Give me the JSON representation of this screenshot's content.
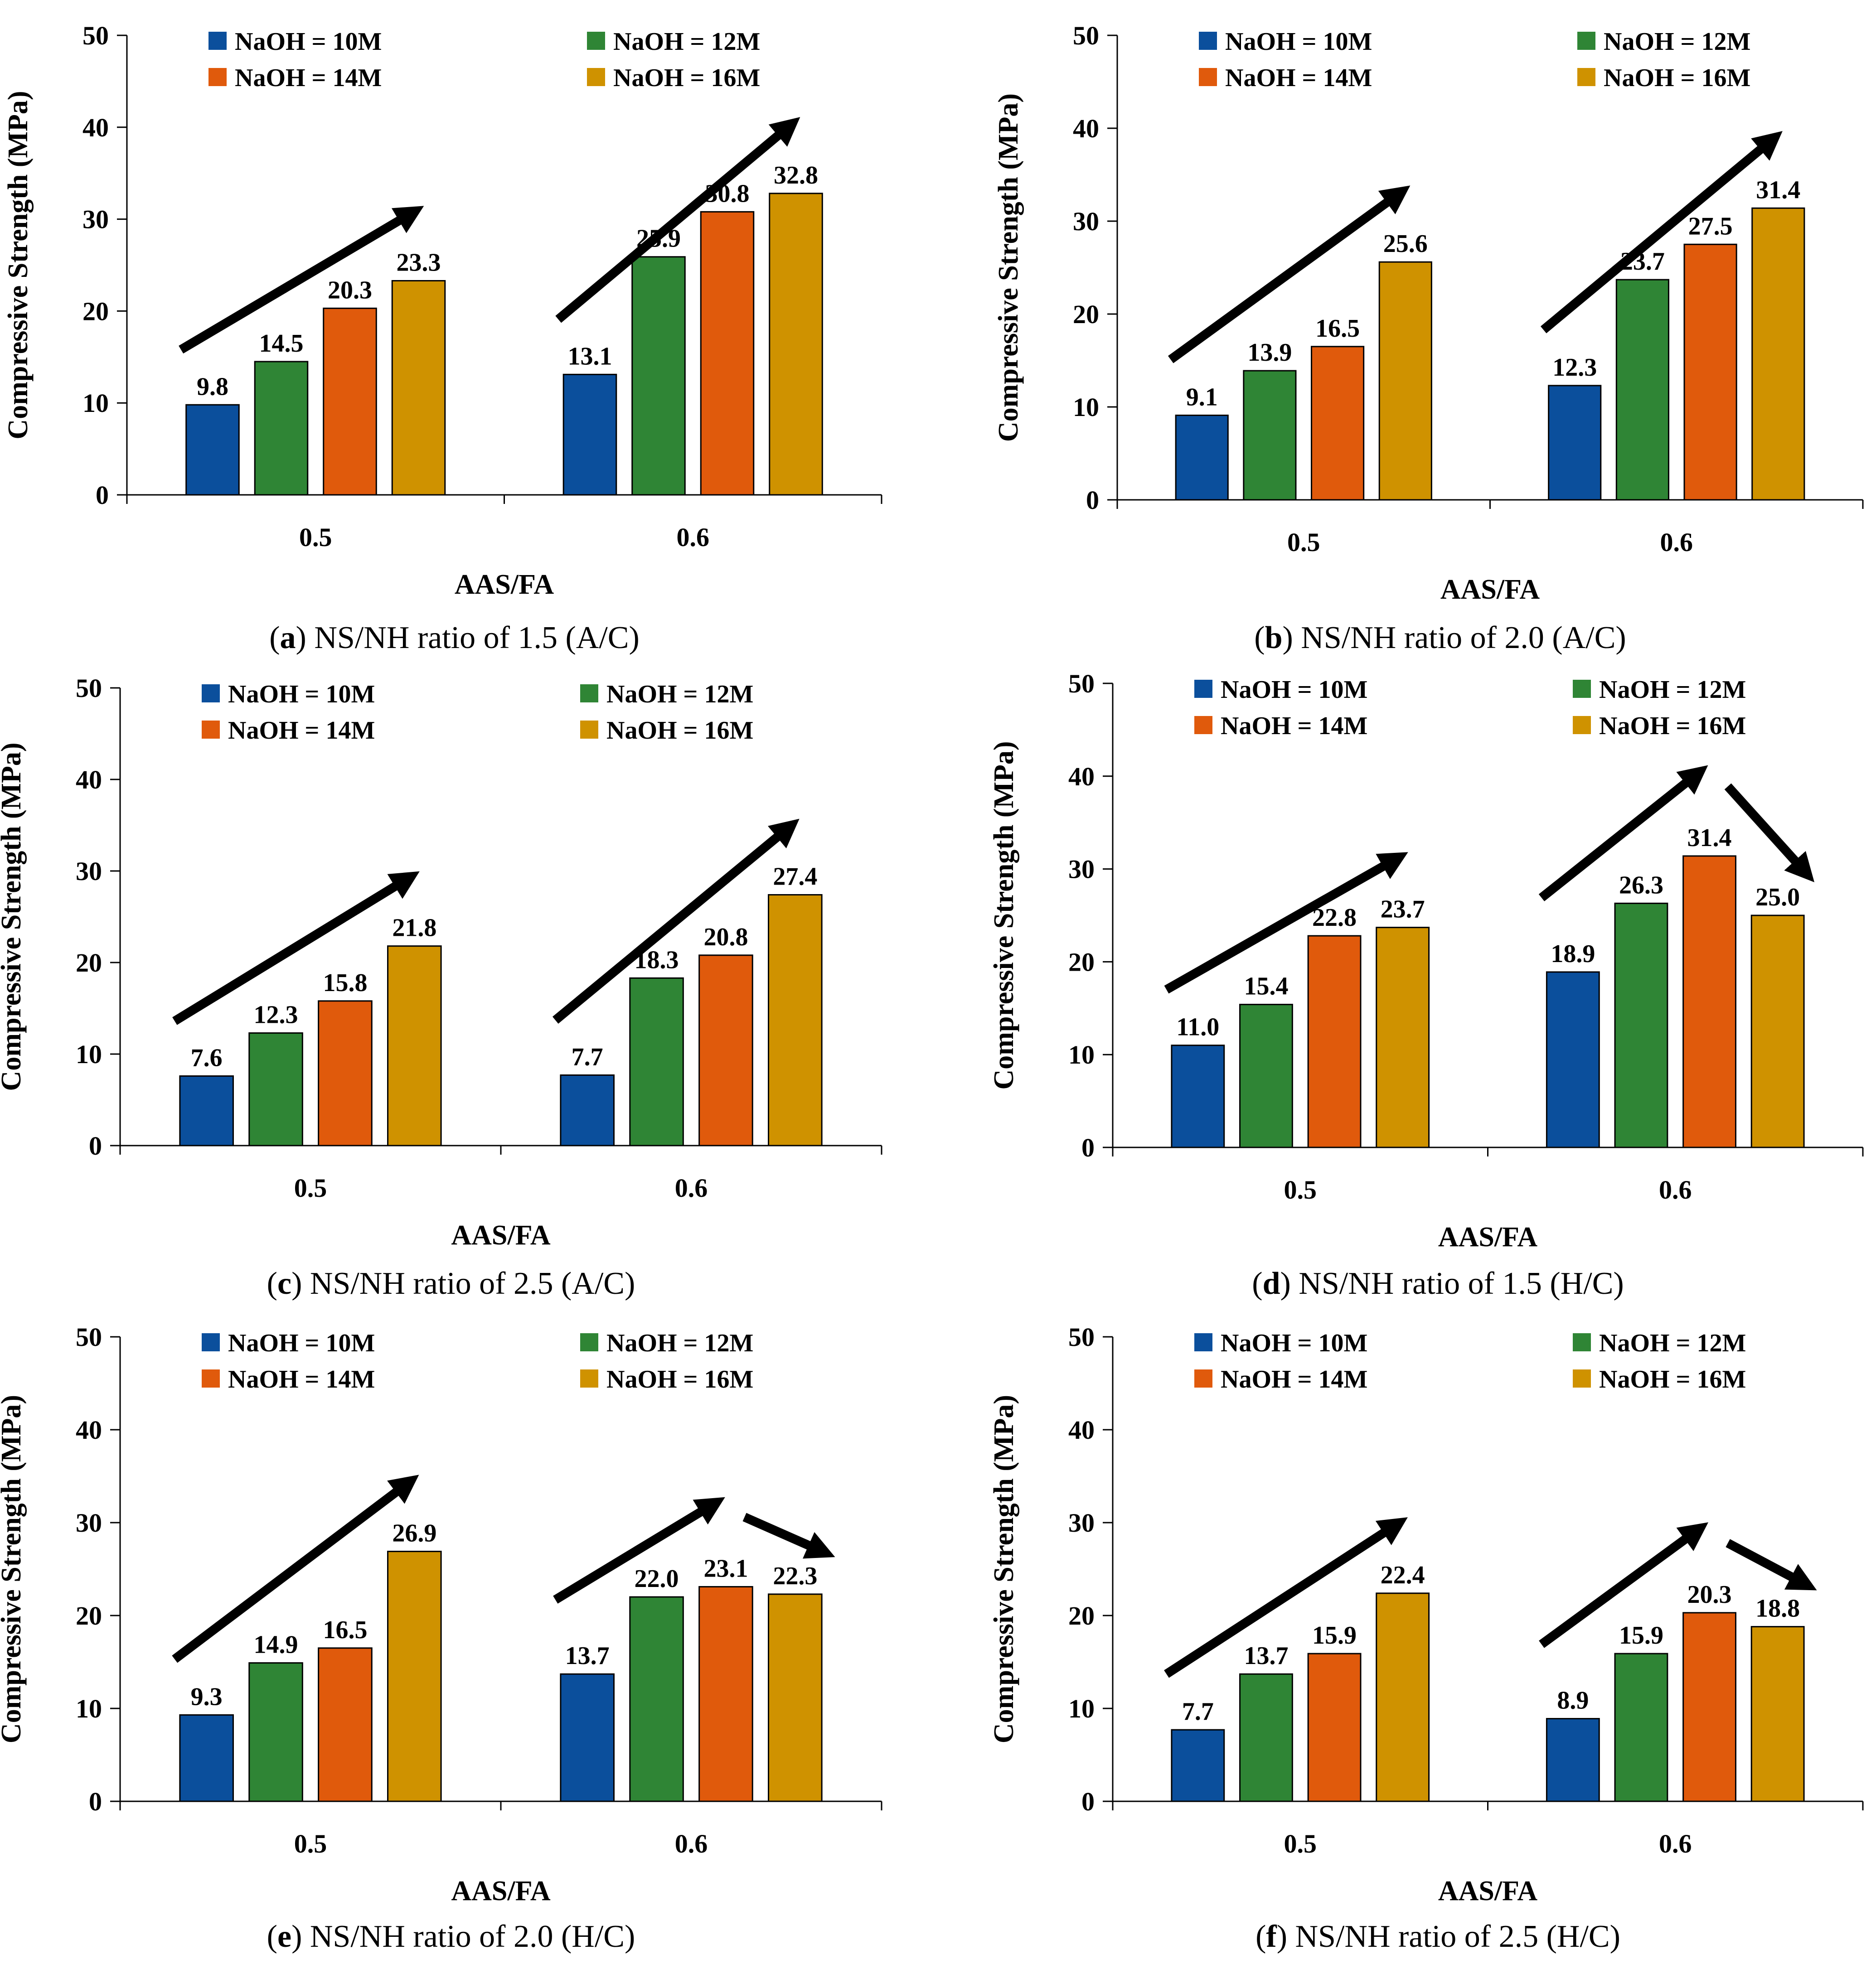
{
  "figure": {
    "colors": {
      "10M": "#0b4f9c",
      "12M": "#2f8535",
      "14M": "#e05a0c",
      "16M": "#cf9200",
      "axis": "#000000"
    }
  },
  "chart_data": [
    {
      "type": "bar",
      "panel_letter": "a",
      "caption": "NS/NH ratio of 1.5 (A/C)",
      "categories": [
        "0.5",
        "0.6"
      ],
      "series": [
        {
          "name": "NaOH = 10M",
          "values": [
            9.8,
            13.1
          ]
        },
        {
          "name": "NaOH = 12M",
          "values": [
            14.5,
            25.9
          ]
        },
        {
          "name": "NaOH = 14M",
          "values": [
            20.3,
            30.8
          ]
        },
        {
          "name": "NaOH = 16M",
          "values": [
            23.3,
            32.8
          ]
        }
      ],
      "xlabel": "AAS/FA",
      "ylabel": "Compressive Strength (MPa)",
      "ylim": [
        0,
        50
      ],
      "yticks": [
        0,
        10,
        20,
        30,
        40,
        50
      ],
      "trend_arrows": [
        "increase",
        "increase"
      ]
    },
    {
      "type": "bar",
      "panel_letter": "b",
      "caption": "NS/NH ratio of 2.0 (A/C)",
      "categories": [
        "0.5",
        "0.6"
      ],
      "series": [
        {
          "name": "NaOH = 10M",
          "values": [
            9.1,
            12.3
          ]
        },
        {
          "name": "NaOH = 12M",
          "values": [
            13.9,
            23.7
          ]
        },
        {
          "name": "NaOH = 14M",
          "values": [
            16.5,
            27.5
          ]
        },
        {
          "name": "NaOH = 16M",
          "values": [
            25.6,
            31.4
          ]
        }
      ],
      "xlabel": "AAS/FA",
      "ylabel": "Compressive Strength (MPa)",
      "ylim": [
        0,
        50
      ],
      "yticks": [
        0,
        10,
        20,
        30,
        40,
        50
      ],
      "trend_arrows": [
        "increase",
        "increase"
      ]
    },
    {
      "type": "bar",
      "panel_letter": "c",
      "caption": "NS/NH ratio of 2.5 (A/C)",
      "categories": [
        "0.5",
        "0.6"
      ],
      "series": [
        {
          "name": "NaOH = 10M",
          "values": [
            7.6,
            7.7
          ]
        },
        {
          "name": "NaOH = 12M",
          "values": [
            12.3,
            18.3
          ]
        },
        {
          "name": "NaOH = 14M",
          "values": [
            15.8,
            20.8
          ]
        },
        {
          "name": "NaOH = 16M",
          "values": [
            21.8,
            27.4
          ]
        }
      ],
      "xlabel": "AAS/FA",
      "ylabel": "Compressive Strength (MPa)",
      "ylim": [
        0,
        50
      ],
      "yticks": [
        0,
        10,
        20,
        30,
        40,
        50
      ],
      "trend_arrows": [
        "increase",
        "increase"
      ]
    },
    {
      "type": "bar",
      "panel_letter": "d",
      "caption": "NS/NH ratio of 1.5 (H/C)",
      "categories": [
        "0.5",
        "0.6"
      ],
      "series": [
        {
          "name": "NaOH = 10M",
          "values": [
            11.0,
            18.9
          ]
        },
        {
          "name": "NaOH = 12M",
          "values": [
            15.4,
            26.3
          ]
        },
        {
          "name": "NaOH = 14M",
          "values": [
            22.8,
            31.4
          ]
        },
        {
          "name": "NaOH = 16M",
          "values": [
            23.7,
            25.0
          ]
        }
      ],
      "xlabel": "AAS/FA",
      "ylabel": "Compressive Strength (MPa)",
      "ylim": [
        0,
        50
      ],
      "yticks": [
        0,
        10,
        20,
        30,
        40,
        50
      ],
      "trend_arrows": [
        "increase",
        "increase-then-decrease"
      ]
    },
    {
      "type": "bar",
      "panel_letter": "e",
      "caption": "NS/NH ratio of 2.0 (H/C)",
      "categories": [
        "0.5",
        "0.6"
      ],
      "series": [
        {
          "name": "NaOH = 10M",
          "values": [
            9.3,
            13.7
          ]
        },
        {
          "name": "NaOH = 12M",
          "values": [
            14.9,
            22.0
          ]
        },
        {
          "name": "NaOH = 14M",
          "values": [
            16.5,
            23.1
          ]
        },
        {
          "name": "NaOH = 16M",
          "values": [
            26.9,
            22.3
          ]
        }
      ],
      "xlabel": "AAS/FA",
      "ylabel": "Compressive Strength (MPa)",
      "ylim": [
        0,
        50
      ],
      "yticks": [
        0,
        10,
        20,
        30,
        40,
        50
      ],
      "trend_arrows": [
        "increase",
        "increase-then-decrease"
      ]
    },
    {
      "type": "bar",
      "panel_letter": "f",
      "caption": "NS/NH ratio of 2.5 (H/C)",
      "categories": [
        "0.5",
        "0.6"
      ],
      "series": [
        {
          "name": "NaOH = 10M",
          "values": [
            7.7,
            8.9
          ]
        },
        {
          "name": "NaOH = 12M",
          "values": [
            13.7,
            15.9
          ]
        },
        {
          "name": "NaOH = 14M",
          "values": [
            15.9,
            20.3
          ]
        },
        {
          "name": "NaOH = 16M",
          "values": [
            22.4,
            18.8
          ]
        }
      ],
      "xlabel": "AAS/FA",
      "ylabel": "Compressive Strength (MPa)",
      "ylim": [
        0,
        50
      ],
      "yticks": [
        0,
        10,
        20,
        30,
        40,
        50
      ],
      "trend_arrows": [
        "increase",
        "increase-then-decrease"
      ]
    }
  ]
}
